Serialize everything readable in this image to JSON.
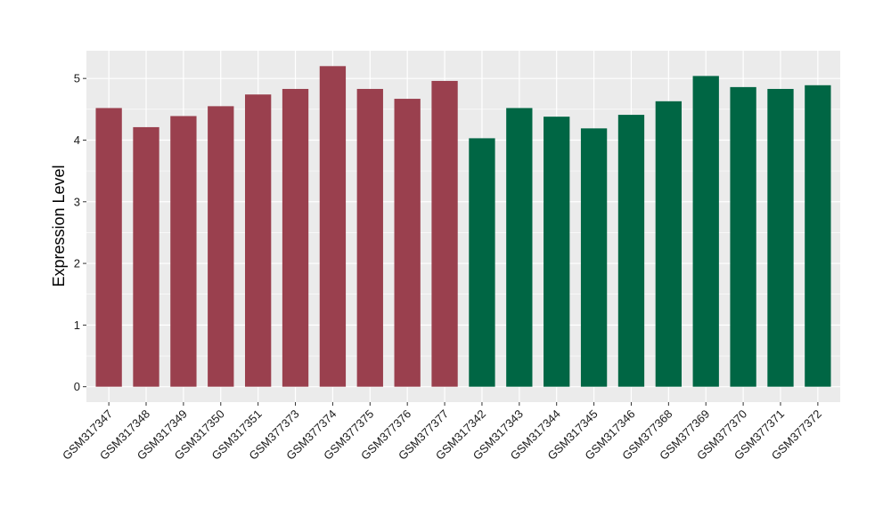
{
  "chart_data": {
    "type": "bar",
    "title": "",
    "xlabel": "",
    "ylabel": "Expression Level",
    "ylim": [
      -0.25,
      5.45
    ],
    "yticks": [
      0,
      1,
      2,
      3,
      4,
      5
    ],
    "grid": true,
    "legend": "none",
    "categories": [
      "GSM317347",
      "GSM317348",
      "GSM317349",
      "GSM317350",
      "GSM317351",
      "GSM377373",
      "GSM377374",
      "GSM377375",
      "GSM377376",
      "GSM377377",
      "GSM317342",
      "GSM317343",
      "GSM317344",
      "GSM317345",
      "GSM317346",
      "GSM377368",
      "GSM377369",
      "GSM377370",
      "GSM377371",
      "GSM377372"
    ],
    "values": [
      4.52,
      4.21,
      4.39,
      4.55,
      4.74,
      4.83,
      5.2,
      4.83,
      4.67,
      4.96,
      4.03,
      4.52,
      4.38,
      4.19,
      4.41,
      4.63,
      5.04,
      4.86,
      4.83,
      4.89
    ],
    "group_colors": [
      "#9a404e",
      "#9a404e",
      "#9a404e",
      "#9a404e",
      "#9a404e",
      "#9a404e",
      "#9a404e",
      "#9a404e",
      "#9a404e",
      "#9a404e",
      "#006644",
      "#006644",
      "#006644",
      "#006644",
      "#006644",
      "#006644",
      "#006644",
      "#006644",
      "#006644",
      "#006644"
    ],
    "panel_background": "#ebebeb",
    "grid_color": "#ffffff"
  }
}
